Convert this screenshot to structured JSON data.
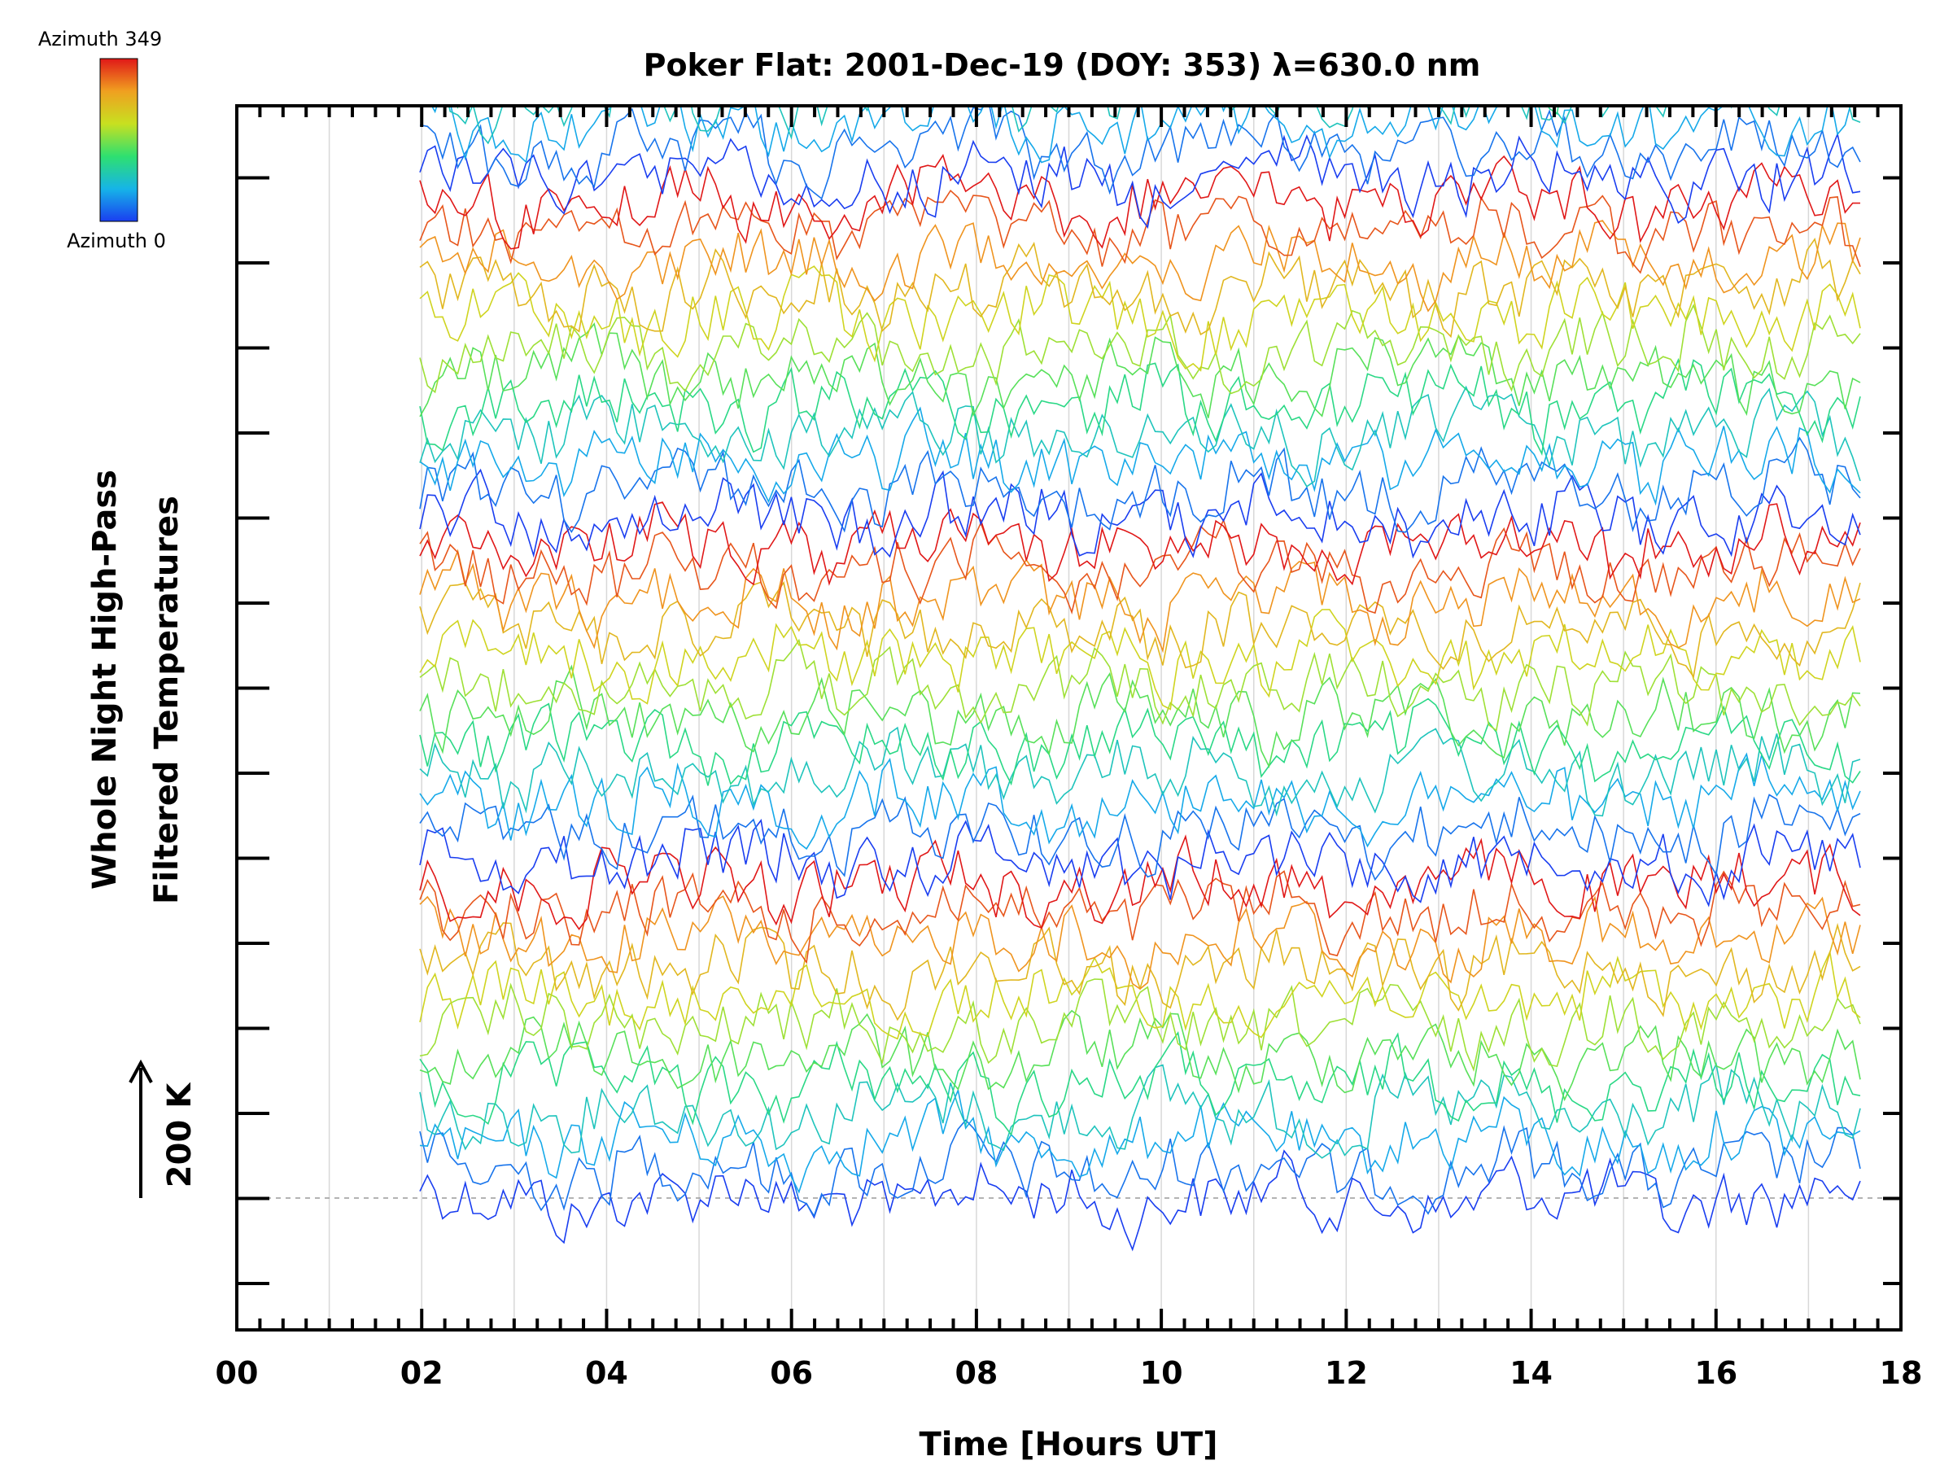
{
  "chart_data": {
    "type": "line",
    "title": "Poker Flat: 2001-Dec-19 (DOY: 353) λ=630.0 nm",
    "xlabel": "Time [Hours UT]",
    "ylabel_line1": "Whole Night High-Pass",
    "ylabel_line2": "Filtered Temperatures",
    "scale_bar_label": "200 K",
    "xlim": [
      0,
      18
    ],
    "x_tick_labels": [
      "00",
      "02",
      "04",
      "06",
      "08",
      "10",
      "12",
      "14",
      "16",
      "18"
    ],
    "colorbar": {
      "top_label": "Azimuth 349",
      "bottom_label": "Azimuth 0",
      "colormap": "rainbow",
      "colors": [
        "#1a3ef0",
        "#16b4e8",
        "#2ee070",
        "#c8e020",
        "#f0c020",
        "#f04010",
        "#e01818"
      ]
    },
    "data_time_range_hours": [
      1.98,
      17.6
    ],
    "groups": [
      {
        "baseline_level": 1,
        "trace_count": 12,
        "azimuth_span": [
          0,
          349
        ]
      },
      {
        "baseline_level": 5,
        "trace_count": 12,
        "azimuth_span": [
          0,
          349
        ]
      },
      {
        "baseline_level": 9,
        "trace_count": 12,
        "azimuth_span": [
          0,
          349
        ]
      },
      {
        "baseline_level": 13,
        "trace_count": 12,
        "azimuth_span": [
          0,
          349
        ]
      }
    ],
    "series_note": "",
    "grid": true,
    "dashed_reference_line": true
  }
}
